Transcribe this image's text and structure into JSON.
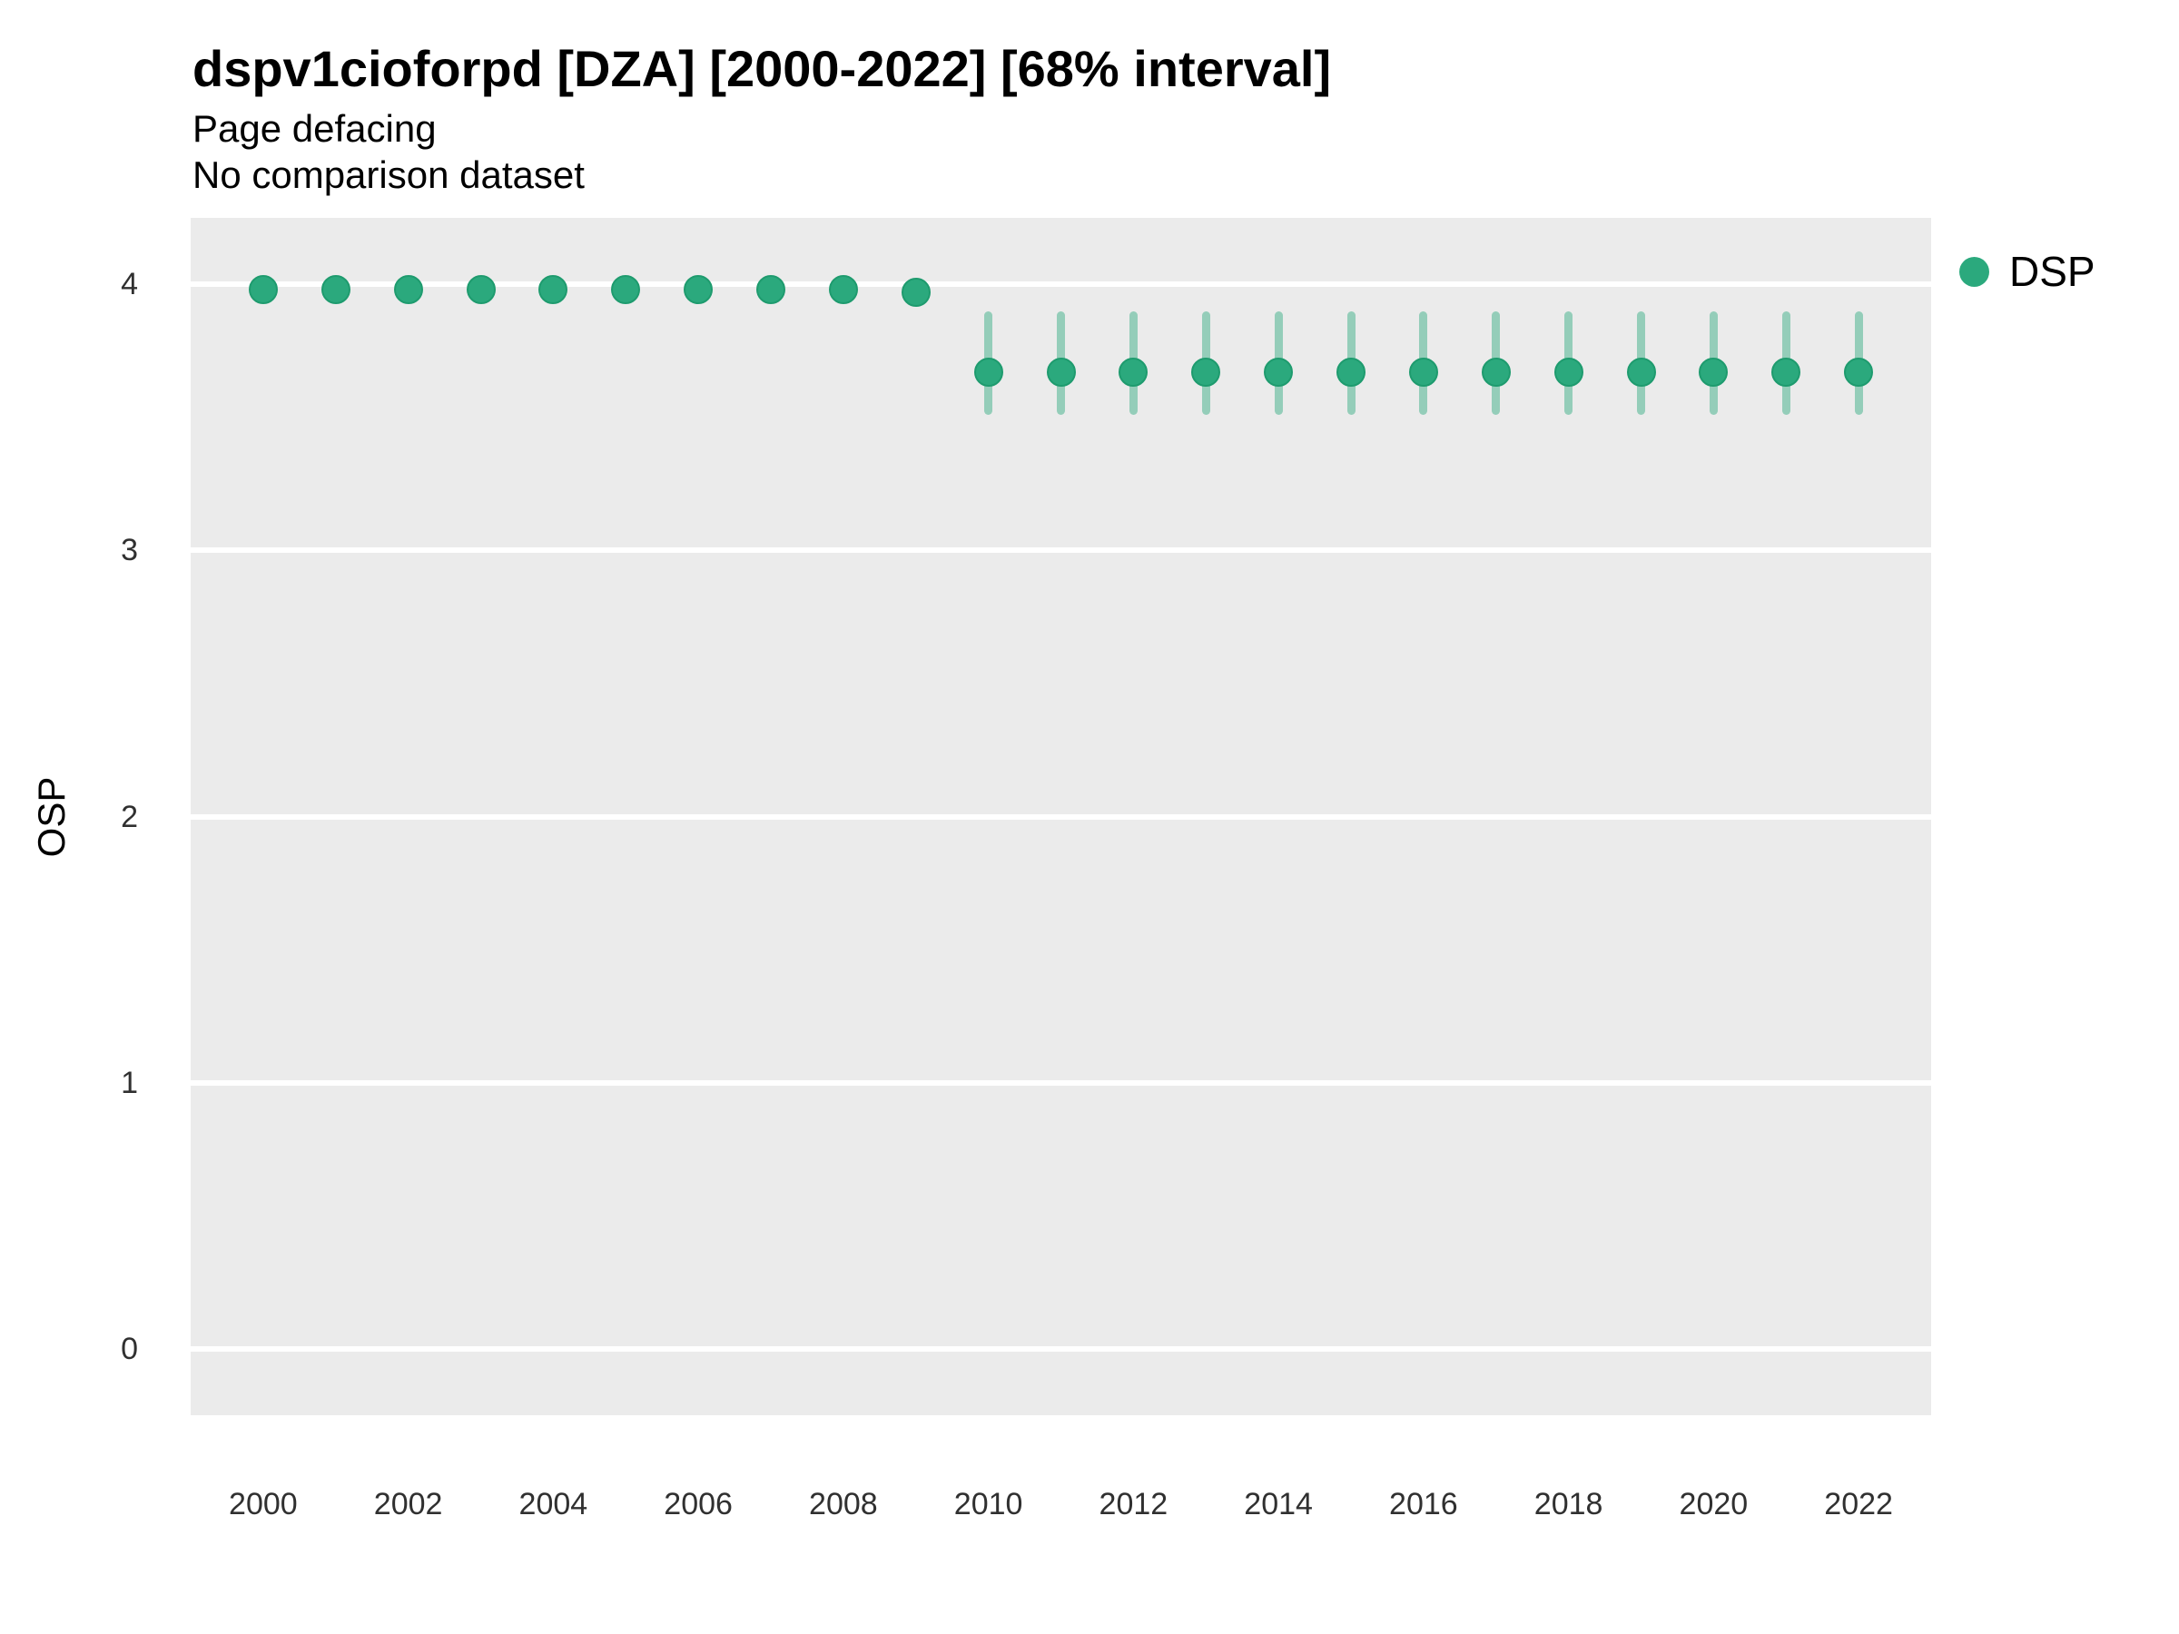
{
  "header": {
    "title": "dspv1cioforpd [DZA] [2000-2022] [68% interval]",
    "subtitle": "Page defacing",
    "note": "No comparison dataset"
  },
  "legend": {
    "label": "DSP"
  },
  "axes": {
    "y_title": "OSP",
    "y_ticks": [
      0,
      1,
      2,
      3,
      4
    ],
    "x_ticks": [
      2000,
      2002,
      2004,
      2006,
      2008,
      2010,
      2012,
      2014,
      2016,
      2018,
      2020,
      2022
    ]
  },
  "colors": {
    "point": "#2BA97D",
    "point_edge": "#1E9B6E",
    "interval": "rgba(43,169,125,0.45)",
    "panel_background": "#EBEBEB",
    "gridline": "#FFFFFF"
  },
  "chart_data": {
    "type": "scatter",
    "title": "dspv1cioforpd [DZA] [2000-2022] [68% interval]",
    "subtitle": "Page defacing",
    "note": "No comparison dataset",
    "xlabel": "",
    "ylabel": "OSP",
    "xlim": [
      1999,
      2023
    ],
    "ylim": [
      -0.25,
      4.25
    ],
    "grid": "horizontal-major-only",
    "legend_position": "right",
    "interval_label": "68% interval",
    "series": [
      {
        "name": "DSP",
        "color": "#2BA97D",
        "points": [
          {
            "x": 2000,
            "y": 3.98,
            "lo": null,
            "hi": null
          },
          {
            "x": 2001,
            "y": 3.98,
            "lo": null,
            "hi": null
          },
          {
            "x": 2002,
            "y": 3.98,
            "lo": null,
            "hi": null
          },
          {
            "x": 2003,
            "y": 3.98,
            "lo": null,
            "hi": null
          },
          {
            "x": 2004,
            "y": 3.98,
            "lo": null,
            "hi": null
          },
          {
            "x": 2005,
            "y": 3.98,
            "lo": null,
            "hi": null
          },
          {
            "x": 2006,
            "y": 3.98,
            "lo": null,
            "hi": null
          },
          {
            "x": 2007,
            "y": 3.98,
            "lo": null,
            "hi": null
          },
          {
            "x": 2008,
            "y": 3.98,
            "lo": null,
            "hi": null
          },
          {
            "x": 2009,
            "y": 3.97,
            "lo": null,
            "hi": null
          },
          {
            "x": 2010,
            "y": 3.67,
            "lo": 3.51,
            "hi": 3.9
          },
          {
            "x": 2011,
            "y": 3.67,
            "lo": 3.51,
            "hi": 3.9
          },
          {
            "x": 2012,
            "y": 3.67,
            "lo": 3.51,
            "hi": 3.9
          },
          {
            "x": 2013,
            "y": 3.67,
            "lo": 3.51,
            "hi": 3.9
          },
          {
            "x": 2014,
            "y": 3.67,
            "lo": 3.51,
            "hi": 3.9
          },
          {
            "x": 2015,
            "y": 3.67,
            "lo": 3.51,
            "hi": 3.9
          },
          {
            "x": 2016,
            "y": 3.67,
            "lo": 3.51,
            "hi": 3.9
          },
          {
            "x": 2017,
            "y": 3.67,
            "lo": 3.51,
            "hi": 3.9
          },
          {
            "x": 2018,
            "y": 3.67,
            "lo": 3.51,
            "hi": 3.9
          },
          {
            "x": 2019,
            "y": 3.67,
            "lo": 3.51,
            "hi": 3.9
          },
          {
            "x": 2020,
            "y": 3.67,
            "lo": 3.51,
            "hi": 3.9
          },
          {
            "x": 2021,
            "y": 3.67,
            "lo": 3.51,
            "hi": 3.9
          },
          {
            "x": 2022,
            "y": 3.67,
            "lo": 3.51,
            "hi": 3.9
          }
        ]
      }
    ]
  }
}
